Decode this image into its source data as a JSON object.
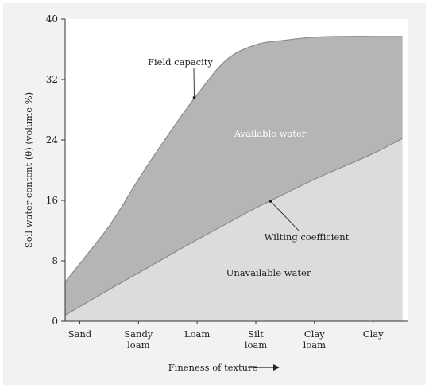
{
  "chart_data": {
    "type": "area",
    "ylabel": "Soil water content (θ) (volume %)",
    "xlabel": "Fineness of texture",
    "xlabel_arrow": "→",
    "categories": [
      "Sand",
      "Sandy loam",
      "Loam",
      "Silt loam",
      "Clay loam",
      "Clay"
    ],
    "category_lines": [
      [
        "Sand"
      ],
      [
        "Sandy",
        "loam"
      ],
      [
        "Loam"
      ],
      [
        "Silt",
        "loam"
      ],
      [
        "Clay",
        "loam"
      ],
      [
        "Clay"
      ]
    ],
    "ylim": [
      0,
      40
    ],
    "yticks": [
      0,
      8,
      16,
      24,
      32,
      40
    ],
    "series": [
      {
        "name": "Field capacity",
        "x": [
          -0.25,
          0.5,
          1.0,
          1.5,
          2.0,
          2.5,
          3.0,
          3.5,
          4.0,
          4.5,
          5.0,
          5.5
        ],
        "values": [
          5.2,
          12.6,
          18.8,
          24.6,
          30.0,
          34.6,
          36.6,
          37.2,
          37.6,
          37.7,
          37.7,
          37.7
        ]
      },
      {
        "name": "Wilting coefficient",
        "x": [
          -0.25,
          0.5,
          1.0,
          1.5,
          2.0,
          2.5,
          3.0,
          3.5,
          4.0,
          4.5,
          5.0,
          5.5
        ],
        "values": [
          0.8,
          4.2,
          6.4,
          8.6,
          10.8,
          12.9,
          15.0,
          16.9,
          18.8,
          20.5,
          22.2,
          24.2
        ]
      }
    ],
    "annotations": {
      "field_capacity": "Field capacity",
      "wilting_coefficient": "Wilting coefficient",
      "available_water": "Available water",
      "unavailable_water": "Unavailable water"
    },
    "colors": {
      "background": "#f2f2f2",
      "available_fill": "#b5b5b5",
      "unavailable_fill": "#dcdcdc",
      "line": "#8a8a8a"
    }
  }
}
